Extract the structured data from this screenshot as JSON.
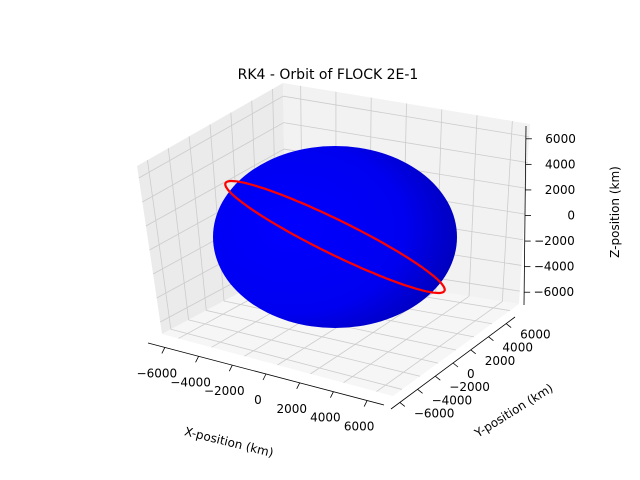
{
  "chart_data": {
    "type": "3d-line-surface",
    "title": "RK4 - Orbit of FLOCK 2E-1",
    "xlabel": "X-position (km)",
    "ylabel": "Y-position (km)",
    "zlabel": "Z-position (km)",
    "xticks": [
      -6000,
      -4000,
      -2000,
      0,
      2000,
      4000,
      6000
    ],
    "yticks": [
      -6000,
      -4000,
      -2000,
      0,
      2000,
      4000,
      6000
    ],
    "zticks": [
      -6000,
      -4000,
      -2000,
      0,
      2000,
      4000,
      6000
    ],
    "xtick_labels": [
      "−6000",
      "−4000",
      "−2000",
      "0",
      "2000",
      "4000",
      "6000"
    ],
    "ytick_labels": [
      "−6000",
      "−4000",
      "−2000",
      "0",
      "2000",
      "4000",
      "6000"
    ],
    "ztick_labels": [
      "−6000",
      "−4000",
      "−2000",
      "0",
      "2000",
      "4000",
      "6000"
    ],
    "grid": true,
    "surface": {
      "name": "Earth",
      "shape": "sphere",
      "radius_km": 6371,
      "color": "#0000ff"
    },
    "series": [
      {
        "shape": "circular-orbit",
        "radius_km": 6780,
        "inclination_deg": 51.6,
        "raan_deg": 125,
        "color": "#ff0000"
      }
    ]
  }
}
